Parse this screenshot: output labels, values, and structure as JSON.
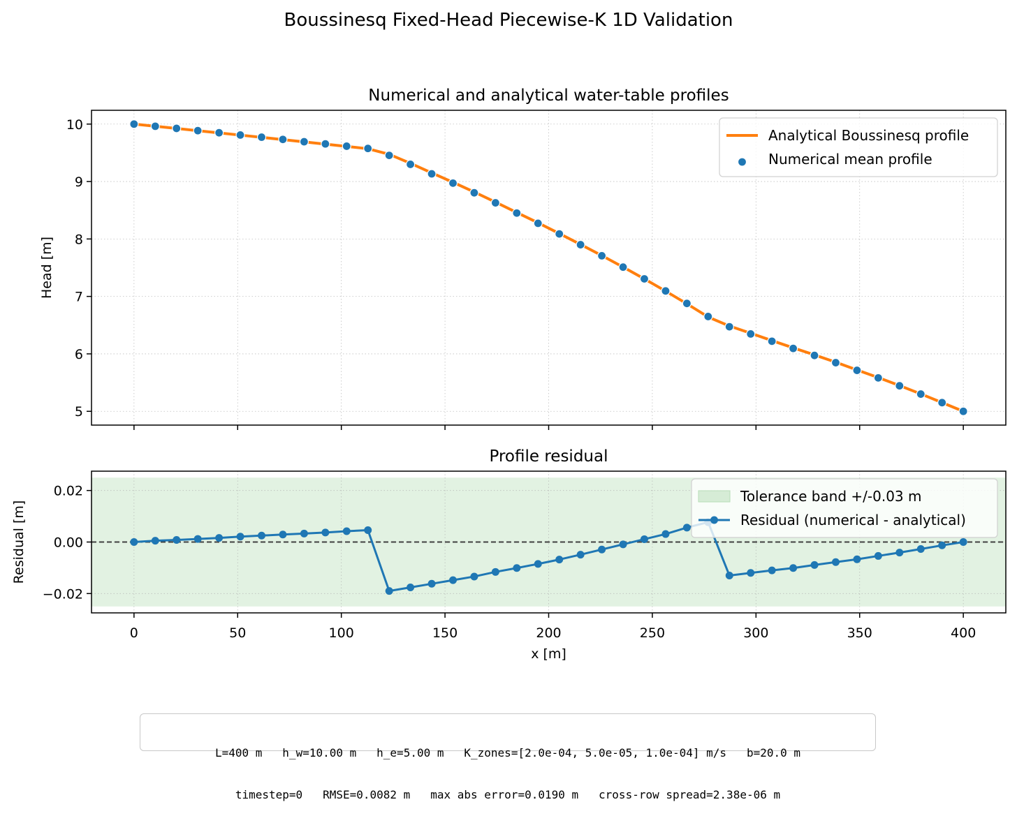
{
  "figure": {
    "title": "Boussinesq Fixed-Head Piecewise-K 1D Validation",
    "info_lines": [
      "L=400 m   h_w=10.00 m   h_e=5.00 m   K_zones=[2.0e-04, 5.0e-05, 1.0e-04] m/s   b=20.0 m",
      "timestep=0   RMSE=0.0082 m   max abs error=0.0190 m   cross-row spread=2.38e-06 m"
    ]
  },
  "chart_data": [
    {
      "type": "line",
      "title": "Numerical and analytical water-table profiles",
      "xlabel": "",
      "ylabel": "Head [m]",
      "xlim": [
        -20.5,
        420.5
      ],
      "ylim": [
        4.76,
        10.24
      ],
      "xticks": [
        0,
        50,
        100,
        150,
        200,
        250,
        300,
        350,
        400
      ],
      "yticks": [
        5,
        6,
        7,
        8,
        9,
        10
      ],
      "grid": true,
      "legend": "top-right",
      "x": [
        0,
        10.26,
        20.51,
        30.77,
        41.03,
        51.28,
        61.54,
        71.79,
        82.05,
        92.31,
        102.56,
        112.82,
        123.08,
        133.33,
        143.59,
        153.85,
        164.1,
        174.36,
        184.62,
        194.87,
        205.13,
        215.38,
        225.64,
        235.9,
        246.15,
        256.41,
        266.67,
        276.92,
        287.18,
        297.44,
        307.69,
        317.95,
        328.21,
        338.46,
        348.72,
        358.97,
        369.23,
        379.49,
        389.74,
        400
      ],
      "series": [
        {
          "name": "Analytical Boussinesq profile",
          "style": "line",
          "color": "#ff7f0e",
          "values": [
            10.0,
            9.962,
            9.924,
            9.885,
            9.847,
            9.808,
            9.769,
            9.73,
            9.69,
            9.651,
            9.611,
            9.571,
            9.474,
            9.317,
            9.15,
            8.987,
            8.817,
            8.641,
            8.461,
            8.282,
            8.095,
            7.905,
            7.711,
            7.511,
            7.305,
            7.092,
            6.872,
            6.642,
            6.485,
            6.359,
            6.231,
            6.105,
            5.982,
            5.855,
            5.72,
            5.588,
            5.448,
            5.303,
            5.152,
            5.0
          ]
        },
        {
          "name": "Numerical mean profile",
          "style": "scatter",
          "color": "#1f77b4",
          "values": [
            10.0,
            9.962,
            9.925,
            9.886,
            9.849,
            9.81,
            9.772,
            9.733,
            9.693,
            9.655,
            9.615,
            9.576,
            9.455,
            9.299,
            9.134,
            8.972,
            8.804,
            8.629,
            8.451,
            8.273,
            8.088,
            7.9,
            7.708,
            7.51,
            7.306,
            7.095,
            6.878,
            6.65,
            6.472,
            6.347,
            6.22,
            6.095,
            5.973,
            5.847,
            5.713,
            5.582,
            5.444,
            5.3,
            5.151,
            5.0
          ]
        }
      ]
    },
    {
      "type": "line",
      "title": "Profile residual",
      "xlabel": "x [m]",
      "ylabel": "Residual [m]",
      "xlim": [
        -20.5,
        420.5
      ],
      "ylim": [
        -0.0275,
        0.0275
      ],
      "xticks": [
        0,
        50,
        100,
        150,
        200,
        250,
        300,
        350,
        400
      ],
      "yticks": [
        -0.02,
        0.0,
        0.02
      ],
      "ytick_labels": [
        "−0.02",
        "0.00",
        "0.02"
      ],
      "grid": true,
      "legend": "top-right",
      "band": {
        "name": "Tolerance band +/-0.03 m",
        "low": -0.025,
        "high": 0.025,
        "color": "#d6ecd6"
      },
      "reference_line": {
        "y": 0,
        "style": "dashed",
        "color": "#404040"
      },
      "x": [
        0,
        10.26,
        20.51,
        30.77,
        41.03,
        51.28,
        61.54,
        71.79,
        82.05,
        92.31,
        102.56,
        112.82,
        123.08,
        133.33,
        143.59,
        153.85,
        164.1,
        174.36,
        184.62,
        194.87,
        205.13,
        215.38,
        225.64,
        235.9,
        246.15,
        256.41,
        266.67,
        276.92,
        287.18,
        297.44,
        307.69,
        317.95,
        328.21,
        338.46,
        348.72,
        358.97,
        369.23,
        379.49,
        389.74,
        400
      ],
      "series": [
        {
          "name": "Residual (numerical - analytical)",
          "style": "line-marker",
          "color": "#1f77b4",
          "values": [
            0.0,
            0.0005,
            0.0008,
            0.0012,
            0.0016,
            0.0021,
            0.0025,
            0.0029,
            0.0033,
            0.0037,
            0.0042,
            0.0046,
            -0.019,
            -0.0176,
            -0.0162,
            -0.0148,
            -0.0134,
            -0.0116,
            -0.0101,
            -0.0085,
            -0.0068,
            -0.0049,
            -0.0029,
            -0.0009,
            0.0011,
            0.0031,
            0.0056,
            0.0077,
            -0.013,
            -0.012,
            -0.011,
            -0.0101,
            -0.0089,
            -0.0078,
            -0.0067,
            -0.0054,
            -0.0041,
            -0.0027,
            -0.0013,
            0.0
          ]
        }
      ]
    }
  ]
}
